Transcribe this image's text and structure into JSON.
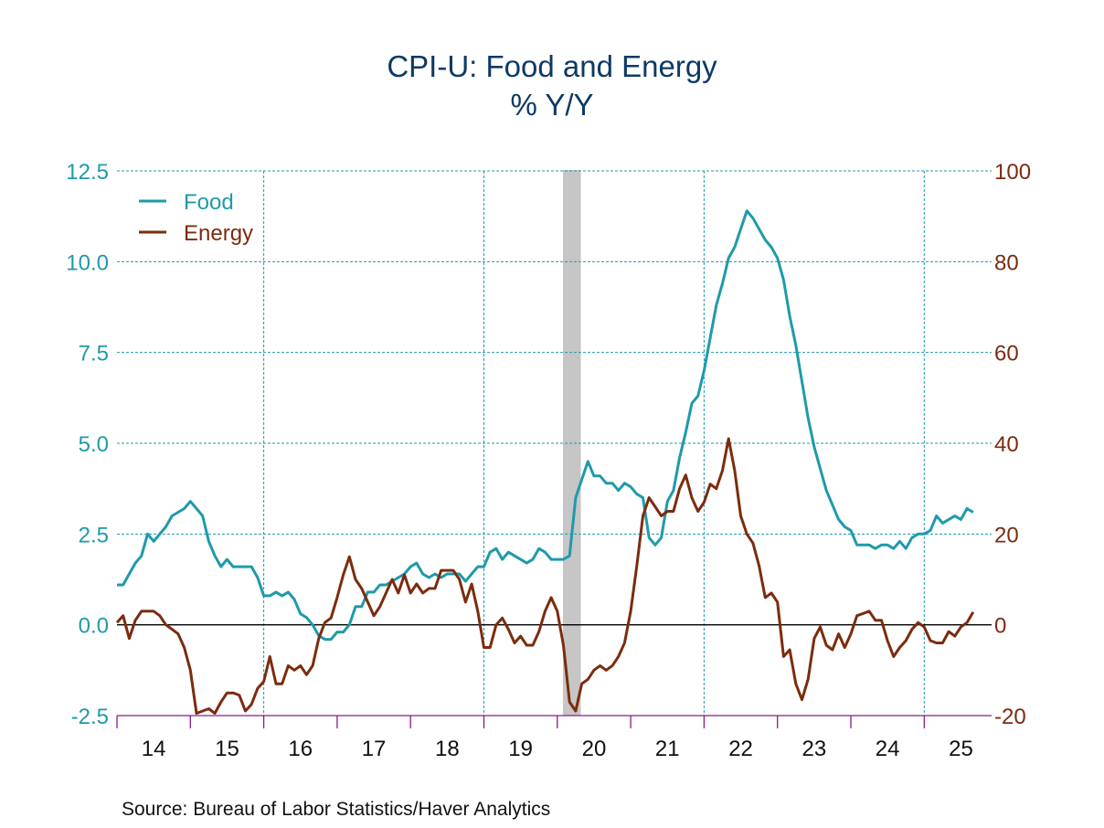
{
  "chart_data": {
    "type": "line",
    "title": "CPI-U: Food and Energy",
    "subtitle": "% Y/Y",
    "source": "Source:  Bureau of Labor Statistics/Haver Analytics",
    "x_start": "2014-01",
    "frequency": "monthly",
    "x_tick_labels": [
      "14",
      "15",
      "16",
      "17",
      "18",
      "19",
      "20",
      "21",
      "22",
      "23",
      "24",
      "25"
    ],
    "left_axis": {
      "ylim": [
        -2.5,
        12.5
      ],
      "ticks": [
        "12.5",
        "10.0",
        "7.5",
        "5.0",
        "2.5",
        "0.0",
        "-2.5"
      ],
      "color": "#1f9aaa"
    },
    "right_axis": {
      "ylim": [
        -20,
        100
      ],
      "ticks": [
        "100",
        "80",
        "60",
        "40",
        "20",
        "0",
        "-20"
      ],
      "color": "#7b2c0e"
    },
    "grid": true,
    "legend": {
      "position": "top-left"
    },
    "recession_shading": [
      {
        "start": "2020-02",
        "end": "2020-04"
      }
    ],
    "series": [
      {
        "name": "Food",
        "axis": "left",
        "color": "#1f9aaa",
        "values": [
          1.1,
          1.1,
          1.4,
          1.7,
          1.9,
          2.5,
          2.3,
          2.5,
          2.7,
          3.0,
          3.1,
          3.2,
          3.4,
          3.2,
          3.0,
          2.3,
          1.9,
          1.6,
          1.8,
          1.6,
          1.6,
          1.6,
          1.6,
          1.3,
          0.8,
          0.8,
          0.9,
          0.8,
          0.9,
          0.7,
          0.3,
          0.2,
          0.0,
          -0.3,
          -0.4,
          -0.4,
          -0.2,
          -0.2,
          0.0,
          0.5,
          0.5,
          0.9,
          0.9,
          1.1,
          1.1,
          1.2,
          1.3,
          1.4,
          1.6,
          1.7,
          1.4,
          1.3,
          1.4,
          1.3,
          1.4,
          1.4,
          1.4,
          1.2,
          1.4,
          1.6,
          1.6,
          2.0,
          2.1,
          1.8,
          2.0,
          1.9,
          1.8,
          1.7,
          1.8,
          2.1,
          2.0,
          1.8,
          1.8,
          1.8,
          1.9,
          3.5,
          4.0,
          4.5,
          4.1,
          4.1,
          3.9,
          3.9,
          3.7,
          3.9,
          3.8,
          3.6,
          3.5,
          2.4,
          2.2,
          2.4,
          3.4,
          3.7,
          4.6,
          5.3,
          6.1,
          6.3,
          7.0,
          7.9,
          8.8,
          9.4,
          10.1,
          10.4,
          10.9,
          11.4,
          11.2,
          10.9,
          10.6,
          10.4,
          10.1,
          9.5,
          8.5,
          7.7,
          6.7,
          5.7,
          4.9,
          4.3,
          3.7,
          3.3,
          2.9,
          2.7,
          2.6,
          2.2,
          2.2,
          2.2,
          2.1,
          2.2,
          2.2,
          2.1,
          2.3,
          2.1,
          2.4,
          2.5,
          2.5,
          2.6,
          3.0,
          2.8,
          2.9,
          3.0,
          2.9,
          3.2,
          3.1
        ]
      },
      {
        "name": "Energy",
        "axis": "right",
        "color": "#7b2c0e",
        "values": [
          0.5,
          2.0,
          -3.0,
          1.0,
          3.0,
          3.0,
          3.0,
          2.0,
          0,
          -1.0,
          -2.0,
          -5.0,
          -10,
          -19.5,
          -19,
          -18.5,
          -19.5,
          -17,
          -15,
          -15,
          -15.5,
          -19,
          -17.5,
          -14,
          -12.5,
          -7,
          -13,
          -13,
          -9,
          -10,
          -9,
          -11,
          -9,
          -3,
          0.5,
          1.5,
          6,
          11,
          15,
          10,
          8,
          5,
          2,
          4,
          7,
          10,
          7,
          11,
          7,
          9,
          7,
          8,
          8,
          12,
          12,
          12,
          10,
          5,
          9,
          3,
          -5,
          -5,
          0,
          1.5,
          -1,
          -4,
          -2.5,
          -4.5,
          -4.5,
          -1.5,
          3,
          6,
          3,
          -4.5,
          -17,
          -19,
          -13,
          -12,
          -10,
          -9,
          -10,
          -9,
          -7,
          -4,
          3,
          13,
          24,
          28,
          26,
          24,
          25,
          25,
          30,
          33,
          28,
          25,
          27,
          31,
          30,
          34,
          41,
          34,
          24,
          20,
          18,
          13,
          6,
          7,
          5,
          -7,
          -5.5,
          -13,
          -16.5,
          -12,
          -3,
          -0.5,
          -4.5,
          -5.5,
          -2,
          -5,
          -2,
          2,
          2.5,
          3,
          1,
          1,
          -3.5,
          -7,
          -5,
          -3.5,
          -1,
          0.5,
          -0.5,
          -3.5,
          -4,
          -4,
          -1.5,
          -2.5,
          -0.5,
          0.5,
          2.8
        ]
      }
    ]
  }
}
